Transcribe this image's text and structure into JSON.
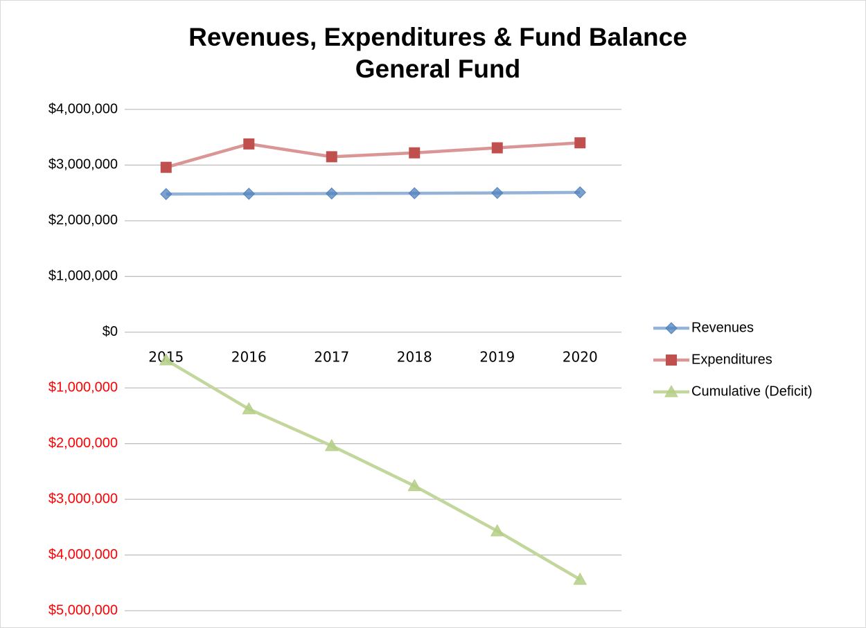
{
  "chart_data": {
    "type": "line",
    "title": [
      "Revenues, Expenditures & Fund Balance",
      "General Fund"
    ],
    "categories": [
      "2015",
      "2016",
      "2017",
      "2018",
      "2019",
      "2020"
    ],
    "series": [
      {
        "name": "Revenues",
        "color": "#4f81bd",
        "line_color": "#95b3d7",
        "marker": "diamond",
        "values": [
          2480000,
          2485000,
          2490000,
          2495000,
          2500000,
          2510000
        ]
      },
      {
        "name": "Expenditures",
        "color": "#c0504d",
        "line_color": "#d99694",
        "marker": "square",
        "values": [
          2960000,
          3380000,
          3150000,
          3220000,
          3310000,
          3400000
        ]
      },
      {
        "name": "Cumulative (Deficit)",
        "color": "#b5cf86",
        "line_color": "#c3d69b",
        "marker": "triangle",
        "values": [
          -500000,
          -1380000,
          -2040000,
          -2760000,
          -3570000,
          -4440000
        ]
      }
    ],
    "ylim": [
      -5000000,
      4000000
    ],
    "yticks": [
      {
        "value": 4000000,
        "label": "$4,000,000"
      },
      {
        "value": 3000000,
        "label": "$3,000,000"
      },
      {
        "value": 2000000,
        "label": "$2,000,000"
      },
      {
        "value": 1000000,
        "label": "$1,000,000"
      },
      {
        "value": 0,
        "label": "$0"
      },
      {
        "value": -1000000,
        "label": "$1,000,000"
      },
      {
        "value": -2000000,
        "label": "$2,000,000"
      },
      {
        "value": -3000000,
        "label": "$3,000,000"
      },
      {
        "value": -4000000,
        "label": "$4,000,000"
      },
      {
        "value": -5000000,
        "label": "$5,000,000"
      }
    ],
    "negative_tick_color": "#ff0000",
    "grid": true,
    "legend": "right"
  }
}
